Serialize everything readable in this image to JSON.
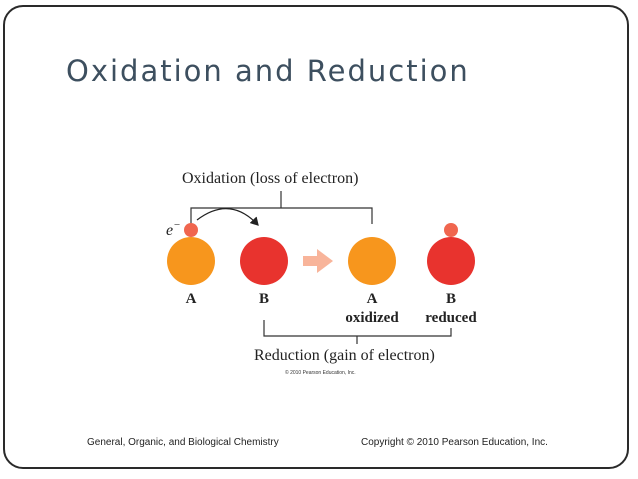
{
  "slide": {
    "title": "Oxidation and Reduction",
    "footer_left": "General, Organic, and Biological Chemistry",
    "footer_right": "Copyright © 2010 Pearson Education, Inc."
  },
  "diagram": {
    "oxidation_label": "Oxidation (loss of electron)",
    "reduction_label": "Reduction (gain of electron)",
    "electron_label": "e",
    "electron_superscript": "−",
    "atoms": [
      {
        "letter": "A",
        "state": ""
      },
      {
        "letter": "B",
        "state": ""
      },
      {
        "letter": "A",
        "state": "oxidized"
      },
      {
        "letter": "B",
        "state": "reduced"
      }
    ],
    "copyright": "© 2010 Pearson Education, Inc.",
    "colors": {
      "atom_a": "#f7961d",
      "atom_b": "#e8332e",
      "electron": "#f0664f",
      "arrow": "#f8b49a"
    }
  }
}
